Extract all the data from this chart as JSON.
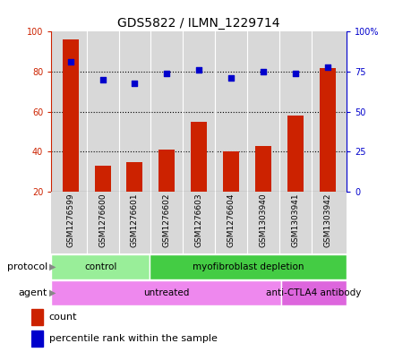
{
  "title": "GDS5822 / ILMN_1229714",
  "samples": [
    "GSM1276599",
    "GSM1276600",
    "GSM1276601",
    "GSM1276602",
    "GSM1276603",
    "GSM1276604",
    "GSM1303940",
    "GSM1303941",
    "GSM1303942"
  ],
  "counts": [
    96,
    33,
    35,
    41,
    55,
    40,
    43,
    58,
    82
  ],
  "percentiles": [
    81,
    70,
    68,
    74,
    76,
    71,
    75,
    74,
    78
  ],
  "left_ylim": [
    20,
    100
  ],
  "left_yticks": [
    20,
    40,
    60,
    80,
    100
  ],
  "right_ylim": [
    0,
    100
  ],
  "right_yticks": [
    0,
    25,
    50,
    75,
    100
  ],
  "right_yticklabels": [
    "0",
    "25",
    "50",
    "75",
    "100%"
  ],
  "bar_color": "#cc2200",
  "dot_color": "#0000cc",
  "bar_width": 0.5,
  "protocol_labels": [
    {
      "text": "control",
      "start": 0,
      "end": 3,
      "color": "#99ee99"
    },
    {
      "text": "myofibroblast depletion",
      "start": 3,
      "end": 9,
      "color": "#44cc44"
    }
  ],
  "agent_labels": [
    {
      "text": "untreated",
      "start": 0,
      "end": 7,
      "color": "#ee88ee"
    },
    {
      "text": "anti-CTLA4 antibody",
      "start": 7,
      "end": 9,
      "color": "#dd66dd"
    }
  ],
  "gridline_color": "#000000",
  "background_color": "#ffffff",
  "plot_bg_color": "#d8d8d8"
}
